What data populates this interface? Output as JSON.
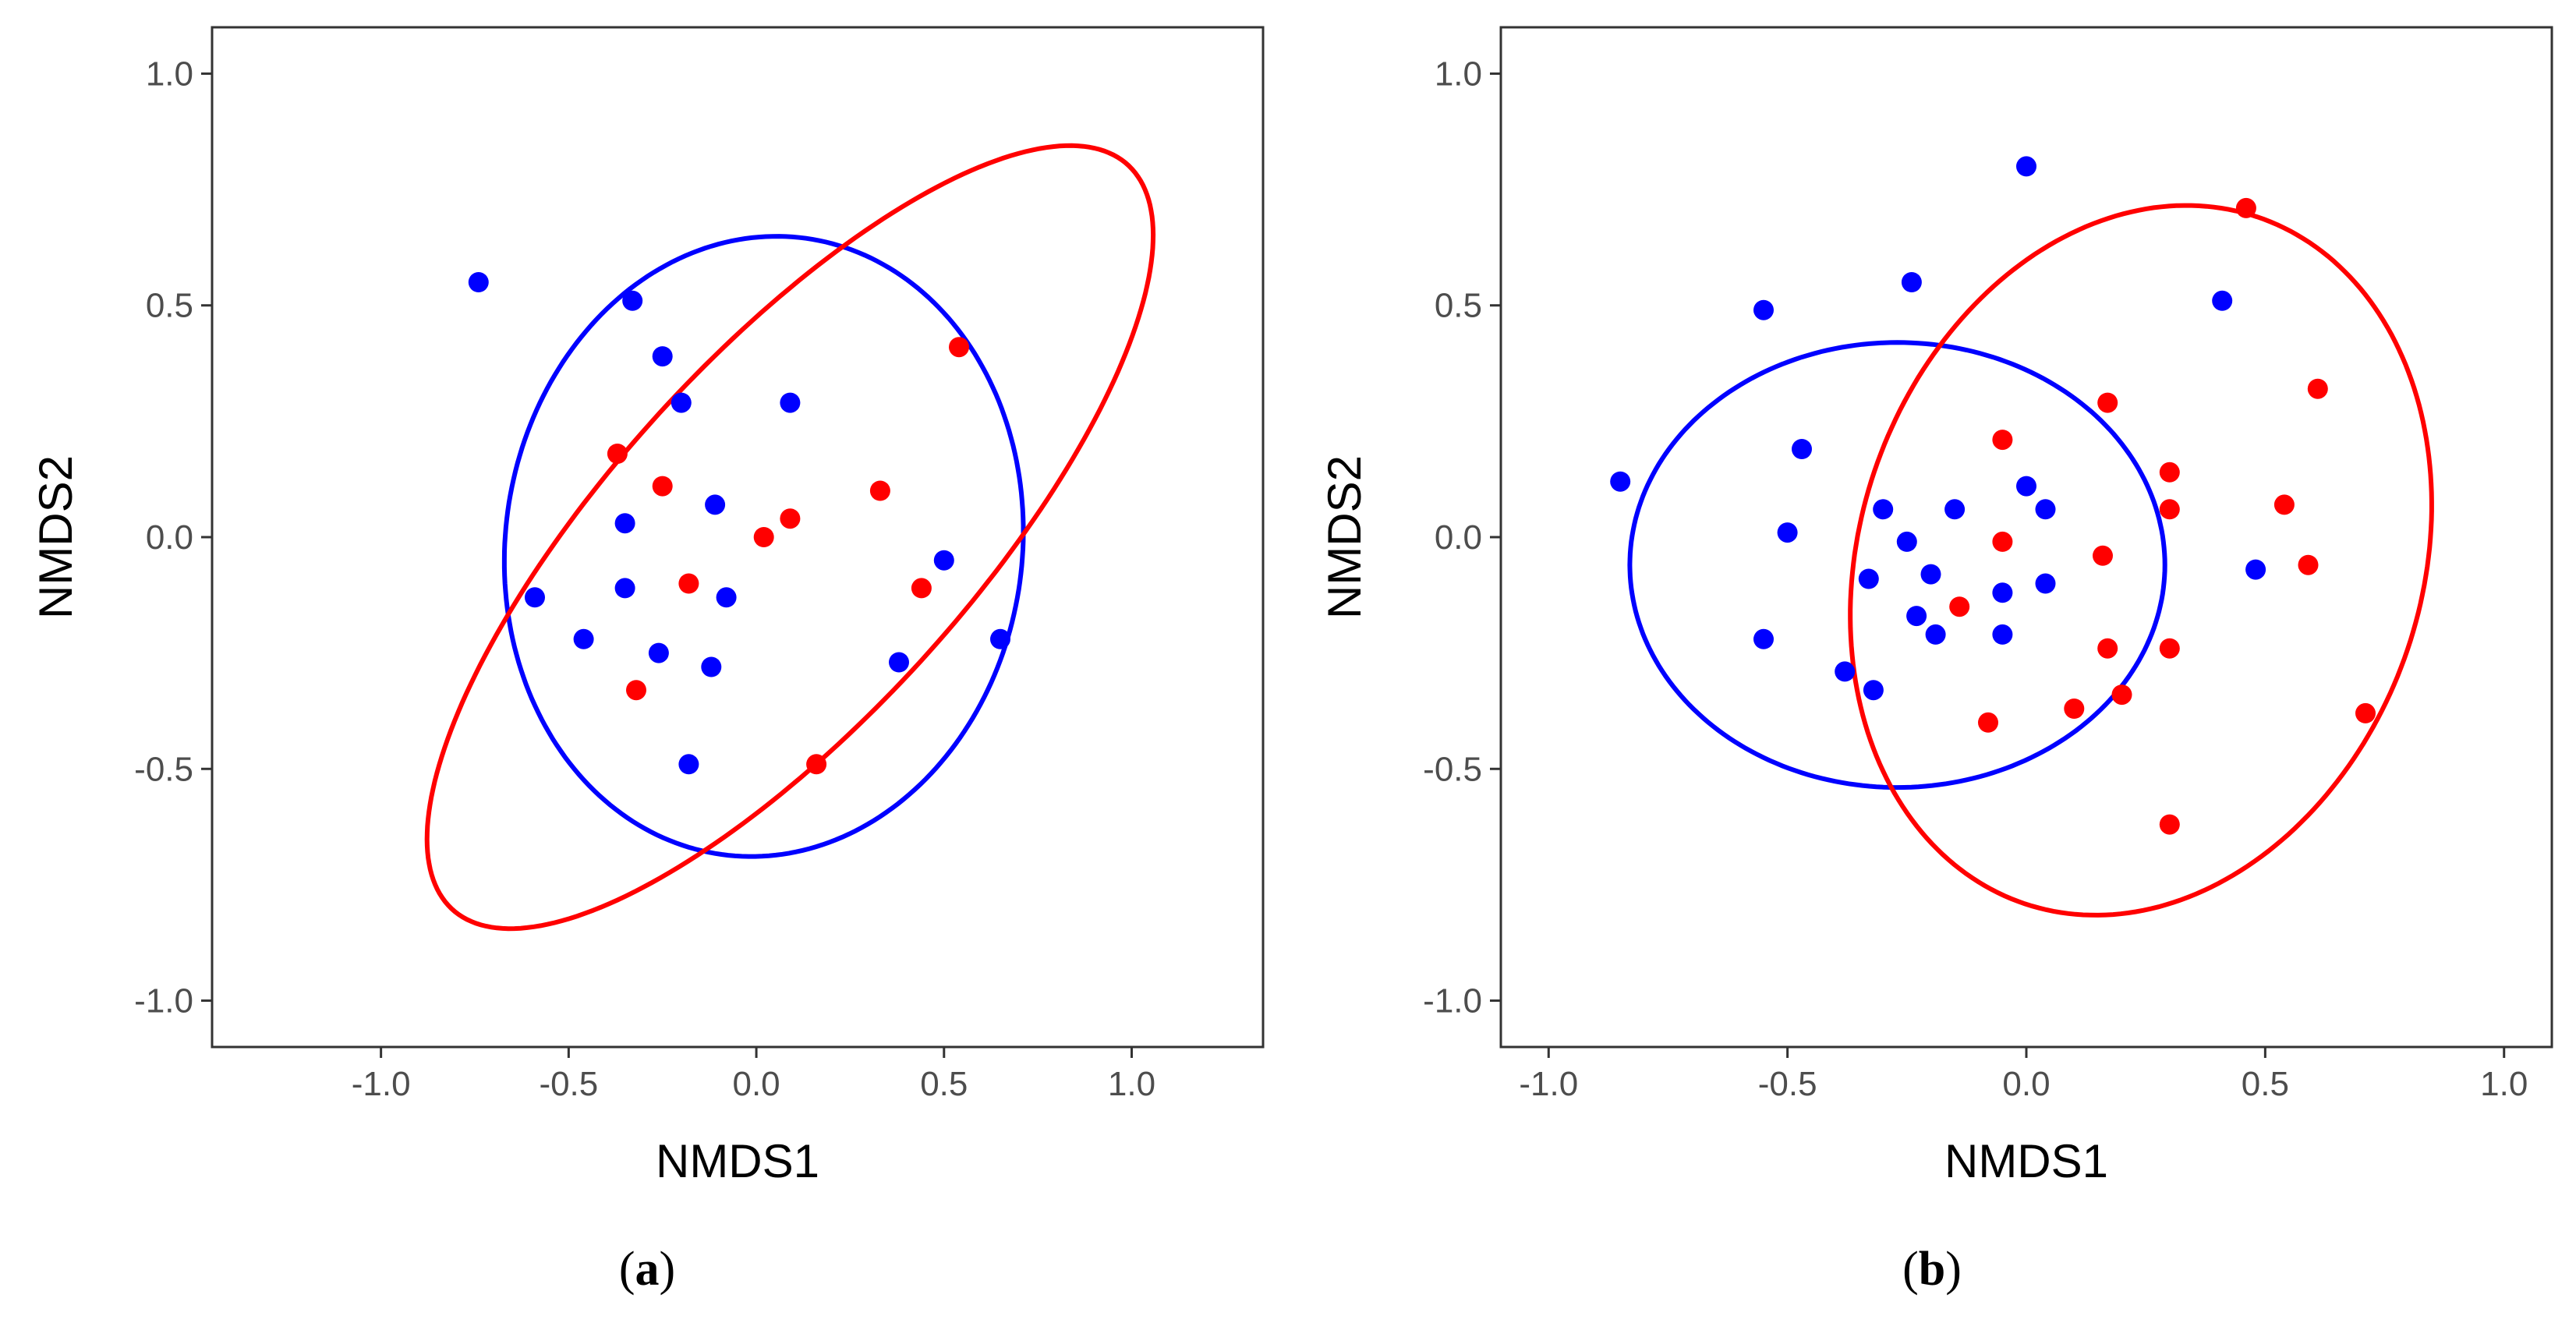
{
  "chart_data": [
    {
      "type": "scatter",
      "panel_label": "a",
      "xlabel": "NMDS1",
      "ylabel": "NMDS2",
      "xlim": [
        -1.45,
        1.35
      ],
      "ylim": [
        -1.1,
        1.1
      ],
      "xticks": [
        -1.0,
        -0.5,
        0.0,
        0.5,
        1.0
      ],
      "xtick_labels": [
        "-1.0",
        "-0.5",
        "0.0",
        "0.5",
        "1.0"
      ],
      "yticks": [
        -1.0,
        -0.5,
        0.0,
        0.5,
        1.0
      ],
      "ytick_labels": [
        "-1.0",
        "-0.5",
        "0.0",
        "0.5",
        "1.0"
      ],
      "grid": false,
      "series": [
        {
          "name": "blue group",
          "color": "#0000ff",
          "points": [
            [
              -0.74,
              0.55
            ],
            [
              -0.33,
              0.51
            ],
            [
              -0.25,
              0.39
            ],
            [
              -0.2,
              0.29
            ],
            [
              0.09,
              0.29
            ],
            [
              -0.35,
              0.03
            ],
            [
              -0.11,
              0.07
            ],
            [
              -0.35,
              -0.11
            ],
            [
              -0.59,
              -0.13
            ],
            [
              -0.08,
              -0.13
            ],
            [
              -0.46,
              -0.22
            ],
            [
              -0.26,
              -0.25
            ],
            [
              -0.12,
              -0.28
            ],
            [
              0.5,
              -0.05
            ],
            [
              0.65,
              -0.22
            ],
            [
              0.38,
              -0.27
            ],
            [
              -0.18,
              -0.49
            ]
          ],
          "ellipse": {
            "center": [
              0.02,
              -0.02
            ],
            "semi_axes": [
              0.66,
              0.7
            ],
            "angle_deg": -62
          }
        },
        {
          "name": "red group",
          "color": "#ff0000",
          "points": [
            [
              -0.37,
              0.18
            ],
            [
              -0.25,
              0.11
            ],
            [
              0.09,
              0.04
            ],
            [
              0.02,
              0.0
            ],
            [
              -0.18,
              -0.1
            ],
            [
              -0.32,
              -0.33
            ],
            [
              0.33,
              0.1
            ],
            [
              0.54,
              0.41
            ],
            [
              0.44,
              -0.11
            ],
            [
              0.16,
              -0.49
            ]
          ],
          "ellipse": {
            "center": [
              0.09,
              0.0
            ],
            "semi_axes": [
              1.21,
              0.43
            ],
            "angle_deg": 40
          }
        }
      ]
    },
    {
      "type": "scatter",
      "panel_label": "b",
      "xlabel": "NMDS1",
      "ylabel": "NMDS2",
      "xlim": [
        -1.1,
        1.1
      ],
      "ylim": [
        -1.1,
        1.1
      ],
      "xticks": [
        -1.0,
        -0.5,
        0.0,
        0.5,
        1.0
      ],
      "xtick_labels": [
        "-1.0",
        "-0.5",
        "0.0",
        "0.5",
        "1.0"
      ],
      "yticks": [
        -1.0,
        -0.5,
        0.0,
        0.5,
        1.0
      ],
      "ytick_labels": [
        "-1.0",
        "-0.5",
        "0.0",
        "0.5",
        "1.0"
      ],
      "grid": false,
      "series": [
        {
          "name": "blue group",
          "color": "#0000ff",
          "points": [
            [
              0.0,
              0.8
            ],
            [
              -0.55,
              0.49
            ],
            [
              -0.24,
              0.55
            ],
            [
              -0.85,
              0.12
            ],
            [
              -0.47,
              0.19
            ],
            [
              -0.5,
              0.01
            ],
            [
              -0.55,
              -0.22
            ],
            [
              -0.38,
              -0.29
            ],
            [
              -0.32,
              -0.33
            ],
            [
              -0.33,
              -0.09
            ],
            [
              -0.3,
              0.06
            ],
            [
              -0.25,
              -0.01
            ],
            [
              -0.23,
              -0.17
            ],
            [
              -0.2,
              -0.08
            ],
            [
              -0.19,
              -0.21
            ],
            [
              -0.15,
              0.06
            ],
            [
              -0.05,
              -0.12
            ],
            [
              -0.05,
              -0.21
            ],
            [
              0.0,
              0.11
            ],
            [
              0.04,
              0.06
            ],
            [
              0.04,
              -0.1
            ],
            [
              0.41,
              0.51
            ],
            [
              0.48,
              -0.07
            ]
          ],
          "ellipse": {
            "center": [
              -0.27,
              -0.06
            ],
            "semi_axes": [
              0.56,
              0.48
            ],
            "angle_deg": 0
          }
        },
        {
          "name": "red group",
          "color": "#ff0000",
          "points": [
            [
              0.46,
              0.71
            ],
            [
              -0.05,
              0.21
            ],
            [
              0.17,
              0.29
            ],
            [
              0.61,
              0.32
            ],
            [
              0.3,
              0.14
            ],
            [
              0.3,
              0.06
            ],
            [
              0.54,
              0.07
            ],
            [
              -0.05,
              -0.01
            ],
            [
              -0.14,
              -0.15
            ],
            [
              0.16,
              -0.04
            ],
            [
              0.59,
              -0.06
            ],
            [
              0.17,
              -0.24
            ],
            [
              0.3,
              -0.24
            ],
            [
              -0.08,
              -0.4
            ],
            [
              0.1,
              -0.37
            ],
            [
              0.2,
              -0.34
            ],
            [
              0.71,
              -0.38
            ],
            [
              0.3,
              -0.62
            ]
          ],
          "ellipse": {
            "center": [
              0.24,
              -0.05
            ],
            "semi_axes": [
              0.78,
              0.59
            ],
            "angle_deg": 73
          }
        }
      ]
    }
  ]
}
